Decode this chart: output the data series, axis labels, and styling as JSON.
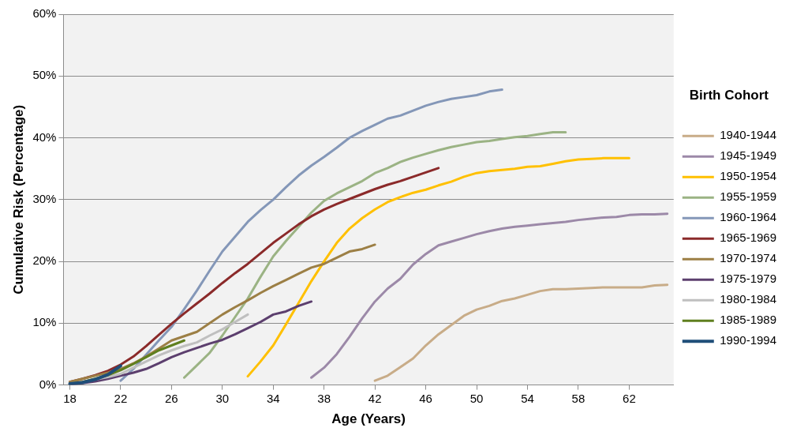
{
  "chart_data": {
    "type": "line",
    "xlabel": "Age (Years)",
    "ylabel": "Cumulative Risk (Percentage)",
    "legend_title": "Birth Cohort",
    "legend": "right",
    "grid": "y",
    "marker": "none",
    "line_style": "solid",
    "xlim": [
      17.5,
      65.5
    ],
    "xticks": [
      18,
      22,
      26,
      30,
      34,
      38,
      42,
      46,
      50,
      54,
      58,
      62
    ],
    "ylim": [
      0,
      60
    ],
    "yticks": [
      {
        "value": 0,
        "label": "0%"
      },
      {
        "value": 10,
        "label": "10%"
      },
      {
        "value": 20,
        "label": "20%"
      },
      {
        "value": 30,
        "label": "30%"
      },
      {
        "value": 40,
        "label": "40%"
      },
      {
        "value": 50,
        "label": "50%"
      },
      {
        "value": 60,
        "label": "60%"
      }
    ],
    "series": [
      {
        "name": "1940-1944",
        "color": "#c8ac88",
        "x": [
          42,
          43,
          44,
          45,
          46,
          47,
          48,
          49,
          50,
          51,
          52,
          53,
          54,
          55,
          56,
          57,
          58,
          59,
          60,
          61,
          62,
          63,
          64,
          65
        ],
        "values": [
          0.7,
          1.5,
          2.9,
          4.3,
          6.4,
          8.2,
          9.7,
          11.2,
          12.2,
          12.8,
          13.6,
          14.0,
          14.6,
          15.2,
          15.5,
          15.5,
          15.6,
          15.7,
          15.8,
          15.8,
          15.8,
          15.8,
          16.1,
          16.2
        ]
      },
      {
        "name": "1945-1949",
        "color": "#9c89a8",
        "x": [
          37,
          38,
          39,
          40,
          41,
          42,
          43,
          44,
          45,
          46,
          47,
          48,
          49,
          50,
          51,
          52,
          53,
          54,
          55,
          56,
          57,
          58,
          59,
          60,
          61,
          62,
          63,
          64,
          65
        ],
        "values": [
          1.2,
          2.8,
          5.0,
          7.8,
          10.8,
          13.5,
          15.6,
          17.2,
          19.5,
          21.2,
          22.6,
          23.2,
          23.8,
          24.4,
          24.9,
          25.3,
          25.6,
          25.8,
          26.0,
          26.2,
          26.4,
          26.7,
          26.9,
          27.1,
          27.2,
          27.5,
          27.6,
          27.6,
          27.7
        ]
      },
      {
        "name": "1950-1954",
        "color": "#ffc000",
        "x": [
          32,
          33,
          34,
          35,
          36,
          37,
          38,
          39,
          40,
          41,
          42,
          43,
          44,
          45,
          46,
          47,
          48,
          49,
          50,
          51,
          52,
          53,
          54,
          55,
          56,
          57,
          58,
          59,
          60,
          61,
          62
        ],
        "values": [
          1.4,
          3.8,
          6.4,
          9.8,
          13.3,
          16.8,
          20.0,
          23.0,
          25.3,
          27.0,
          28.4,
          29.6,
          30.4,
          31.1,
          31.6,
          32.3,
          32.9,
          33.7,
          34.3,
          34.6,
          34.8,
          35.0,
          35.3,
          35.4,
          35.8,
          36.2,
          36.5,
          36.6,
          36.7,
          36.7,
          36.7
        ]
      },
      {
        "name": "1955-1959",
        "color": "#9bb384",
        "x": [
          27,
          28,
          29,
          30,
          31,
          32,
          33,
          34,
          35,
          36,
          37,
          38,
          39,
          40,
          41,
          42,
          43,
          44,
          45,
          46,
          47,
          48,
          49,
          50,
          51,
          52,
          53,
          54,
          55,
          56,
          57
        ],
        "values": [
          1.2,
          3.2,
          5.2,
          8.0,
          11.0,
          14.0,
          17.5,
          20.8,
          23.3,
          25.6,
          27.9,
          29.8,
          31.0,
          32.0,
          33.0,
          34.3,
          35.1,
          36.1,
          36.8,
          37.4,
          38.0,
          38.5,
          38.9,
          39.3,
          39.5,
          39.8,
          40.1,
          40.3,
          40.6,
          40.9,
          40.9
        ]
      },
      {
        "name": "1960-1964",
        "color": "#8497b8",
        "x": [
          22,
          23,
          24,
          25,
          26,
          27,
          28,
          29,
          30,
          31,
          32,
          33,
          34,
          35,
          36,
          37,
          38,
          39,
          40,
          41,
          42,
          43,
          44,
          45,
          46,
          47,
          48,
          49,
          50,
          51,
          52
        ],
        "values": [
          0.7,
          2.6,
          4.9,
          7.2,
          9.4,
          12.3,
          15.3,
          18.5,
          21.6,
          24.0,
          26.4,
          28.3,
          30.0,
          32.0,
          33.9,
          35.5,
          36.9,
          38.4,
          40.0,
          41.1,
          42.1,
          43.1,
          43.6,
          44.4,
          45.2,
          45.8,
          46.3,
          46.6,
          46.9,
          47.5,
          47.8
        ]
      },
      {
        "name": "1965-1969",
        "color": "#8b2a2a",
        "x": [
          18,
          19,
          20,
          21,
          22,
          23,
          24,
          25,
          26,
          27,
          28,
          29,
          30,
          31,
          32,
          33,
          34,
          35,
          36,
          37,
          38,
          39,
          40,
          41,
          42,
          43,
          44,
          45,
          46,
          47
        ],
        "values": [
          0.5,
          1.0,
          1.6,
          2.3,
          3.3,
          4.6,
          6.3,
          8.1,
          9.9,
          11.6,
          13.2,
          14.8,
          16.5,
          18.1,
          19.6,
          21.3,
          23.0,
          24.5,
          26.0,
          27.3,
          28.4,
          29.3,
          30.1,
          30.9,
          31.7,
          32.4,
          33.0,
          33.7,
          34.4,
          35.1
        ]
      },
      {
        "name": "1970-1974",
        "color": "#9c7f45",
        "x": [
          18,
          19,
          20,
          21,
          22,
          23,
          24,
          25,
          26,
          27,
          28,
          29,
          30,
          31,
          32,
          33,
          34,
          35,
          36,
          37,
          38,
          39,
          40,
          41,
          42
        ],
        "values": [
          0.5,
          1.0,
          1.5,
          2.0,
          2.6,
          3.5,
          4.6,
          5.9,
          7.2,
          7.9,
          8.6,
          10.0,
          11.4,
          12.6,
          13.7,
          14.9,
          16.0,
          17.0,
          18.0,
          19.0,
          19.6,
          20.6,
          21.6,
          22.0,
          22.7
        ]
      },
      {
        "name": "1975-1979",
        "color": "#5c3f6e",
        "x": [
          18,
          19,
          20,
          21,
          22,
          23,
          24,
          25,
          26,
          27,
          28,
          29,
          30,
          31,
          32,
          33,
          34,
          35,
          36,
          37
        ],
        "values": [
          0.1,
          0.3,
          0.6,
          1.0,
          1.5,
          2.0,
          2.6,
          3.5,
          4.5,
          5.3,
          6.0,
          6.7,
          7.3,
          8.2,
          9.2,
          10.2,
          11.4,
          11.9,
          12.8,
          13.5
        ]
      },
      {
        "name": "1980-1984",
        "color": "#bfbfbf",
        "x": [
          18,
          19,
          20,
          21,
          22,
          23,
          24,
          25,
          26,
          27,
          28,
          29,
          30,
          31,
          32
        ],
        "values": [
          0.2,
          0.5,
          0.9,
          1.3,
          1.8,
          2.8,
          3.8,
          4.8,
          5.6,
          6.3,
          6.9,
          8.0,
          9.0,
          10.2,
          11.4
        ]
      },
      {
        "name": "1985-1989",
        "color": "#5f7f1f",
        "x": [
          18,
          19,
          20,
          21,
          22,
          23,
          24,
          25,
          26,
          27
        ],
        "values": [
          0.2,
          0.5,
          1.0,
          1.6,
          2.4,
          3.4,
          4.5,
          5.6,
          6.4,
          7.2
        ]
      },
      {
        "name": "1990-1994",
        "color": "#1f4e79",
        "x": [
          18,
          19,
          20,
          21,
          22
        ],
        "values": [
          0.2,
          0.4,
          0.9,
          1.7,
          3.1
        ]
      }
    ]
  }
}
